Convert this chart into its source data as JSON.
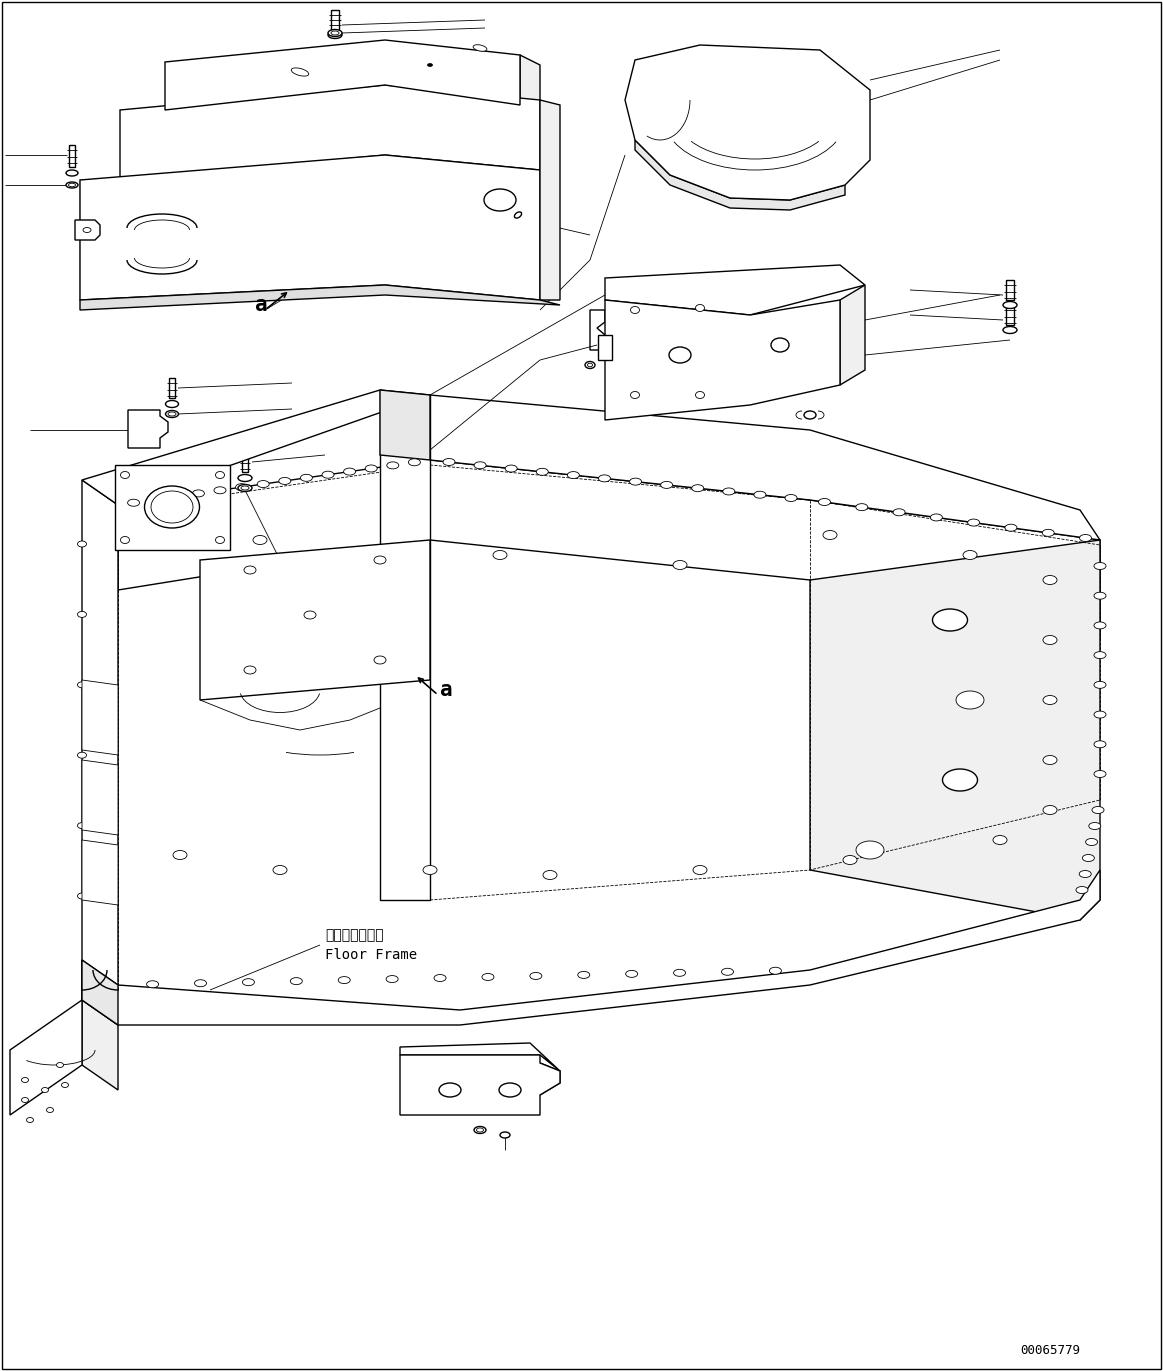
{
  "background_color": "#ffffff",
  "line_color": "#000000",
  "fig_width": 11.63,
  "fig_height": 13.71,
  "dpi": 100,
  "part_number": "00065779",
  "label_a": "a",
  "floor_frame_jp": "フロアフレーム",
  "floor_frame_en": "Floor Frame"
}
